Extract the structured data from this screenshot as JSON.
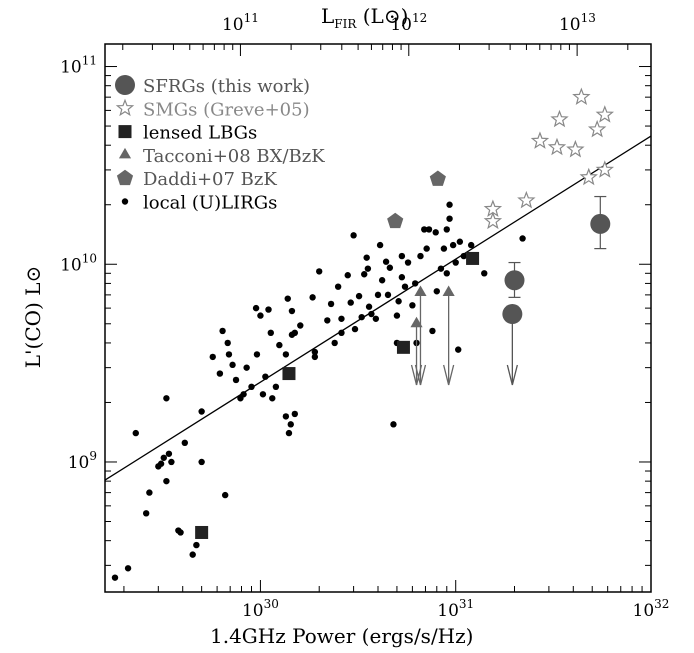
{
  "chart_data": {
    "type": "scatter",
    "xlabel": "1.4GHz Power (ergs/s/Hz)",
    "ylabel": "L'(CO) L⊙",
    "top_xlabel": "L_FIR (L⊙)",
    "top_xlabel_main": "L",
    "top_xlabel_sub": "FIR",
    "top_xlabel_unit": "(L⊙)",
    "xscale": "log",
    "yscale": "log",
    "xlim": [
      1.6e+29,
      1e+32
    ],
    "ylim": [
      220000000.0,
      130000000000.0
    ],
    "x_ticks": [
      {
        "base": "10",
        "exp": "30",
        "value": 1e+30
      },
      {
        "base": "10",
        "exp": "31",
        "value": 1e+31
      },
      {
        "base": "10",
        "exp": "32",
        "value": 1e+32
      }
    ],
    "y_ticks": [
      {
        "base": "10",
        "exp": "9",
        "value": 1000000000.0
      },
      {
        "base": "10",
        "exp": "10",
        "value": 10000000000.0
      },
      {
        "base": "10",
        "exp": "11",
        "value": 100000000000.0
      }
    ],
    "top_ticks": [
      {
        "base": "10",
        "exp": "11",
        "value": 7.9e+29
      },
      {
        "base": "10",
        "exp": "12",
        "value": 5.75e+30
      },
      {
        "base": "10",
        "exp": "13",
        "value": 4.2e+31
      }
    ],
    "fit_line": {
      "x": [
        1.6e+29,
        1e+32
      ],
      "y": [
        810000000.0,
        44500000000.0
      ]
    },
    "legend": {
      "placement": "top-left",
      "entries": [
        {
          "label": "SFRGs (this work)",
          "marker": "circle-large",
          "color": "#555555",
          "text_color": "#555555"
        },
        {
          "label": "SMGs (Greve+05)",
          "marker": "star-open",
          "color": "#888888",
          "text_color": "#888888"
        },
        {
          "label": "lensed LBGs",
          "marker": "square",
          "color": "#222222",
          "text_color": "#000000"
        },
        {
          "label": "Tacconi+08 BX/BzK",
          "marker": "triangle",
          "color": "#666666",
          "text_color": "#555555"
        },
        {
          "label": "Daddi+07 BzK",
          "marker": "pentagon",
          "color": "#666666",
          "text_color": "#555555"
        },
        {
          "label": "local (U)LIRGs",
          "marker": "dot",
          "color": "#000000",
          "text_color": "#000000"
        }
      ]
    },
    "series": [
      {
        "name": "SFRGs (this work)",
        "marker": "circle-large",
        "color": "#555555",
        "points": [
          {
            "x": 5.5e+31,
            "y": 16000000000.0,
            "err_low": 12000000000.0,
            "err_high": 22000000000.0
          },
          {
            "x": 2e+31,
            "y": 8300000000.0,
            "err_low": 6800000000.0,
            "err_high": 10200000000.0
          },
          {
            "x": 1.95e+31,
            "y": 5600000000.0,
            "upper_limit": true
          }
        ]
      },
      {
        "name": "SMGs (Greve+05)",
        "marker": "star-open",
        "color": "#888888",
        "points": [
          {
            "x": 4.4e+31,
            "y": 70000000000.0
          },
          {
            "x": 3.4e+31,
            "y": 54000000000.0
          },
          {
            "x": 5.8e+31,
            "y": 57000000000.0
          },
          {
            "x": 5.3e+31,
            "y": 48000000000.0
          },
          {
            "x": 2.7e+31,
            "y": 42000000000.0
          },
          {
            "x": 3.3e+31,
            "y": 39000000000.0
          },
          {
            "x": 4.1e+31,
            "y": 38000000000.0
          },
          {
            "x": 5.8e+31,
            "y": 30000000000.0
          },
          {
            "x": 4.8e+31,
            "y": 27500000000.0
          },
          {
            "x": 2.3e+31,
            "y": 21000000000.0
          },
          {
            "x": 1.55e+31,
            "y": 19000000000.0
          },
          {
            "x": 1.55e+31,
            "y": 16500000000.0
          }
        ]
      },
      {
        "name": "lensed LBGs",
        "marker": "square",
        "color": "#222222",
        "points": [
          {
            "x": 5e+29,
            "y": 440000000.0
          },
          {
            "x": 1.4e+30,
            "y": 2800000000.0
          },
          {
            "x": 5.4e+30,
            "y": 3800000000.0
          },
          {
            "x": 1.22e+31,
            "y": 10700000000.0
          }
        ]
      },
      {
        "name": "Tacconi+08 BX/BzK",
        "marker": "triangle",
        "color": "#666666",
        "points": [
          {
            "x": 6.3e+30,
            "y": 5000000000.0,
            "upper_limit": true
          },
          {
            "x": 6.6e+30,
            "y": 7200000000.0,
            "upper_limit": true
          },
          {
            "x": 9.2e+30,
            "y": 7200000000.0,
            "upper_limit": true
          }
        ]
      },
      {
        "name": "Daddi+07 BzK",
        "marker": "pentagon",
        "color": "#666666",
        "points": [
          {
            "x": 4.9e+30,
            "y": 16500000000.0
          },
          {
            "x": 8.1e+30,
            "y": 27000000000.0
          }
        ]
      },
      {
        "name": "local (U)LIRGs",
        "marker": "dot",
        "color": "#000000",
        "points": [
          {
            "x": 1.8e+29,
            "y": 260000000.0
          },
          {
            "x": 2.1e+29,
            "y": 290000000.0
          },
          {
            "x": 2.3e+29,
            "y": 1400000000.0
          },
          {
            "x": 2.6e+29,
            "y": 550000000.0
          },
          {
            "x": 2.7e+29,
            "y": 700000000.0
          },
          {
            "x": 3e+29,
            "y": 950000000.0
          },
          {
            "x": 3.1e+29,
            "y": 980000000.0
          },
          {
            "x": 3.2e+29,
            "y": 1050000000.0
          },
          {
            "x": 3.4e+29,
            "y": 1100000000.0
          },
          {
            "x": 3.3e+29,
            "y": 2100000000.0
          },
          {
            "x": 3.5e+29,
            "y": 1000000000.0
          },
          {
            "x": 3.3e+29,
            "y": 800000000.0
          },
          {
            "x": 3.8e+29,
            "y": 450000000.0
          },
          {
            "x": 3.9e+29,
            "y": 440000000.0
          },
          {
            "x": 4.1e+29,
            "y": 1250000000.0
          },
          {
            "x": 4.5e+29,
            "y": 340000000.0
          },
          {
            "x": 4.7e+29,
            "y": 380000000.0
          },
          {
            "x": 5e+29,
            "y": 1800000000.0
          },
          {
            "x": 5e+29,
            "y": 1000000000.0
          },
          {
            "x": 5.7e+29,
            "y": 3400000000.0
          },
          {
            "x": 6.2e+29,
            "y": 2800000000.0
          },
          {
            "x": 6.4e+29,
            "y": 4600000000.0
          },
          {
            "x": 6.6e+29,
            "y": 680000000.0
          },
          {
            "x": 6.8e+29,
            "y": 4000000000.0
          },
          {
            "x": 6.9e+29,
            "y": 3500000000.0
          },
          {
            "x": 7.2e+29,
            "y": 3100000000.0
          },
          {
            "x": 7.5e+29,
            "y": 2600000000.0
          },
          {
            "x": 7.9e+29,
            "y": 2100000000.0
          },
          {
            "x": 8.2e+29,
            "y": 2200000000.0
          },
          {
            "x": 8.5e+29,
            "y": 3000000000.0
          },
          {
            "x": 9e+29,
            "y": 2400000000.0
          },
          {
            "x": 9.5e+29,
            "y": 6000000000.0
          },
          {
            "x": 9.6e+29,
            "y": 3500000000.0
          },
          {
            "x": 1e+30,
            "y": 5500000000.0
          },
          {
            "x": 1.03e+30,
            "y": 2200000000.0
          },
          {
            "x": 1.06e+30,
            "y": 2700000000.0
          },
          {
            "x": 1.1e+30,
            "y": 5900000000.0
          },
          {
            "x": 1.13e+30,
            "y": 4500000000.0
          },
          {
            "x": 1.15e+30,
            "y": 2100000000.0
          },
          {
            "x": 1.2e+30,
            "y": 2400000000.0
          },
          {
            "x": 1.25e+30,
            "y": 3900000000.0
          },
          {
            "x": 1.35e+30,
            "y": 1700000000.0
          },
          {
            "x": 1.35e+30,
            "y": 3500000000.0
          },
          {
            "x": 1.38e+30,
            "y": 6700000000.0
          },
          {
            "x": 1.4e+30,
            "y": 1400000000.0
          },
          {
            "x": 1.43e+30,
            "y": 1550000000.0
          },
          {
            "x": 1.45e+30,
            "y": 5800000000.0
          },
          {
            "x": 1.45e+30,
            "y": 4400000000.0
          },
          {
            "x": 1.5e+30,
            "y": 1750000000.0
          },
          {
            "x": 1.5e+30,
            "y": 4500000000.0
          },
          {
            "x": 1.6e+30,
            "y": 4900000000.0
          },
          {
            "x": 1.85e+30,
            "y": 6800000000.0
          },
          {
            "x": 1.9e+30,
            "y": 3600000000.0
          },
          {
            "x": 1.9e+30,
            "y": 3400000000.0
          },
          {
            "x": 2e+30,
            "y": 9200000000.0
          },
          {
            "x": 2.2e+30,
            "y": 5200000000.0
          },
          {
            "x": 2.3e+30,
            "y": 6300000000.0
          },
          {
            "x": 2.4e+30,
            "y": 4000000000.0
          },
          {
            "x": 2.5e+30,
            "y": 7700000000.0
          },
          {
            "x": 2.6e+30,
            "y": 5300000000.0
          },
          {
            "x": 2.6e+30,
            "y": 4500000000.0
          },
          {
            "x": 2.8e+30,
            "y": 8800000000.0
          },
          {
            "x": 2.9e+30,
            "y": 6400000000.0
          },
          {
            "x": 3e+30,
            "y": 14000000000.0
          },
          {
            "x": 3.05e+30,
            "y": 4700000000.0
          },
          {
            "x": 3.2e+30,
            "y": 6900000000.0
          },
          {
            "x": 3.3e+30,
            "y": 5400000000.0
          },
          {
            "x": 3.4e+30,
            "y": 8900000000.0
          },
          {
            "x": 3.5e+30,
            "y": 10800000000.0
          },
          {
            "x": 3.55e+30,
            "y": 9500000000.0
          },
          {
            "x": 3.6e+30,
            "y": 6100000000.0
          },
          {
            "x": 3.7e+30,
            "y": 5600000000.0
          },
          {
            "x": 3.9e+30,
            "y": 5300000000.0
          },
          {
            "x": 4e+30,
            "y": 7000000000.0
          },
          {
            "x": 4.1e+30,
            "y": 12500000000.0
          },
          {
            "x": 4.2e+30,
            "y": 8300000000.0
          },
          {
            "x": 4.4e+30,
            "y": 10300000000.0
          },
          {
            "x": 4.5e+30,
            "y": 7000000000.0
          },
          {
            "x": 4.6e+30,
            "y": 9600000000.0
          },
          {
            "x": 4.8e+30,
            "y": 1550000000.0
          },
          {
            "x": 5e+30,
            "y": 4000000000.0
          },
          {
            "x": 5e+30,
            "y": 5500000000.0
          },
          {
            "x": 5.1e+30,
            "y": 6500000000.0
          },
          {
            "x": 5.3e+30,
            "y": 8600000000.0
          },
          {
            "x": 5.3e+30,
            "y": 11000000000.0
          },
          {
            "x": 5.5e+30,
            "y": 7700000000.0
          },
          {
            "x": 5.7e+30,
            "y": 10200000000.0
          },
          {
            "x": 6e+30,
            "y": 6200000000.0
          },
          {
            "x": 6.2e+30,
            "y": 8000000000.0
          },
          {
            "x": 6.3e+30,
            "y": 4000000000.0
          },
          {
            "x": 6.6e+30,
            "y": 11000000000.0
          },
          {
            "x": 6.9e+30,
            "y": 15000000000.0
          },
          {
            "x": 7.1e+30,
            "y": 12000000000.0
          },
          {
            "x": 7.3e+30,
            "y": 15000000000.0
          },
          {
            "x": 7.6e+30,
            "y": 4600000000.0
          },
          {
            "x": 7.9e+30,
            "y": 14500000000.0
          },
          {
            "x": 8e+30,
            "y": 7300000000.0
          },
          {
            "x": 8.4e+30,
            "y": 9500000000.0
          },
          {
            "x": 8.7e+30,
            "y": 12000000000.0
          },
          {
            "x": 9e+30,
            "y": 15000000000.0
          },
          {
            "x": 9e+30,
            "y": 9000000000.0
          },
          {
            "x": 9.3e+30,
            "y": 17000000000.0
          },
          {
            "x": 9.3e+30,
            "y": 20000000000.0
          },
          {
            "x": 9.7e+30,
            "y": 12500000000.0
          },
          {
            "x": 1e+31,
            "y": 10200000000.0
          },
          {
            "x": 1.03e+31,
            "y": 3700000000.0
          },
          {
            "x": 1.05e+31,
            "y": 13000000000.0
          },
          {
            "x": 1.1e+31,
            "y": 11000000000.0
          },
          {
            "x": 1.2e+31,
            "y": 12500000000.0
          },
          {
            "x": 1.4e+31,
            "y": 9000000000.0
          },
          {
            "x": 2.2e+31,
            "y": 13500000000.0
          }
        ]
      }
    ]
  }
}
